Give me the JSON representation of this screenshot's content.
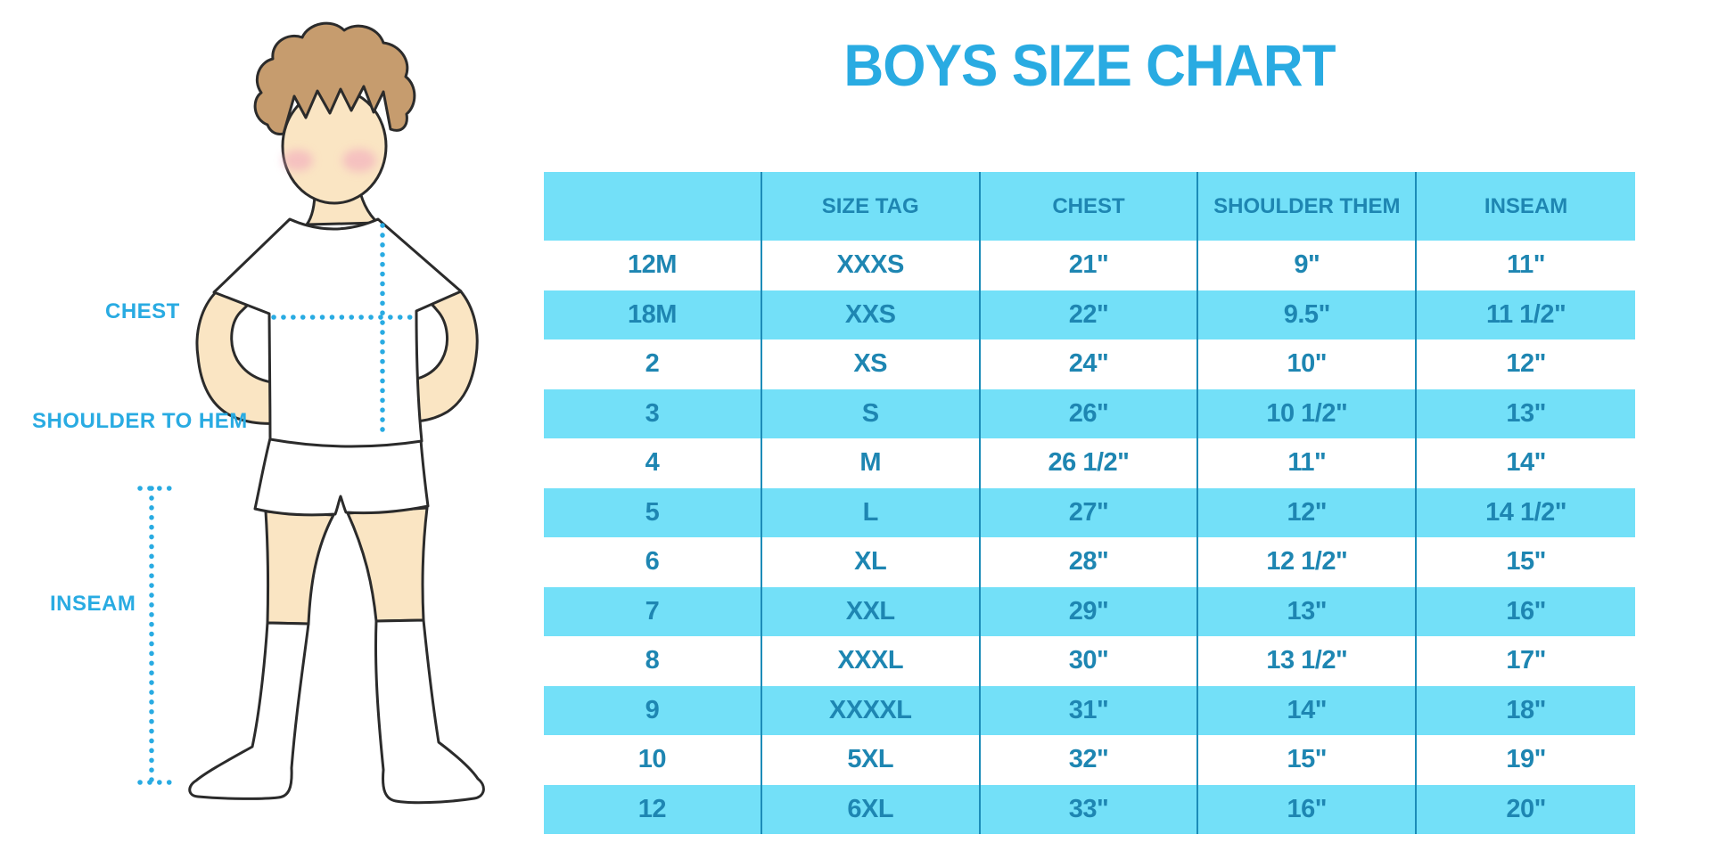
{
  "title": "BOYS SIZE CHART",
  "figure": {
    "chest_label": "CHEST",
    "shoulder_to_hem_label": "SHOULDER TO HEM",
    "inseam_label": "INSEAM"
  },
  "colors": {
    "title_blue": "#29ABE2",
    "row_cyan": "#73E0F8",
    "table_text": "#1E86B2",
    "grid_line": "#1C8CB8",
    "dotted_line_blue": "#29ABE2",
    "skin": "#FAE5C3",
    "hair": "#C69C6E",
    "cheek": "#F2A9BD",
    "outline": "#2B2B2B"
  },
  "chart_data": {
    "type": "table",
    "title": "BOYS SIZE CHART",
    "columns": [
      "",
      "SIZE TAG",
      "CHEST",
      "SHOULDER THEM",
      "INSEAM"
    ],
    "rows": [
      [
        "12M",
        "XXXS",
        "21\"",
        "9\"",
        "11\""
      ],
      [
        "18M",
        "XXS",
        "22\"",
        "9.5\"",
        "11 1/2\""
      ],
      [
        "2",
        "XS",
        "24\"",
        "10\"",
        "12\""
      ],
      [
        "3",
        "S",
        "26\"",
        "10 1/2\"",
        "13\""
      ],
      [
        "4",
        "M",
        "26 1/2\"",
        "11\"",
        "14\""
      ],
      [
        "5",
        "L",
        "27\"",
        "12\"",
        "14 1/2\""
      ],
      [
        "6",
        "XL",
        "28\"",
        "12 1/2\"",
        "15\""
      ],
      [
        "7",
        "XXL",
        "29\"",
        "13\"",
        "16\""
      ],
      [
        "8",
        "XXXL",
        "30\"",
        "13 1/2\"",
        "17\""
      ],
      [
        "9",
        "XXXXL",
        "31\"",
        "14\"",
        "18\""
      ],
      [
        "10",
        "5XL",
        "32\"",
        "15\"",
        "19\""
      ],
      [
        "12",
        "6XL",
        "33\"",
        "16\"",
        "20\""
      ]
    ]
  }
}
